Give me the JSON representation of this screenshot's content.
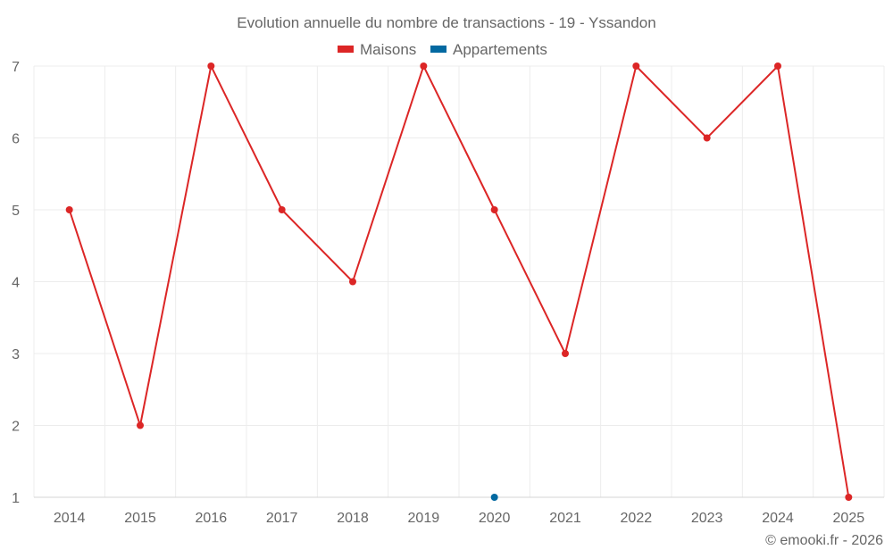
{
  "chart_data": {
    "type": "line",
    "title": "Evolution annuelle du nombre de transactions - 19 - Yssandon",
    "categories": [
      "2014",
      "2015",
      "2016",
      "2017",
      "2018",
      "2019",
      "2020",
      "2021",
      "2022",
      "2023",
      "2024",
      "2025"
    ],
    "series": [
      {
        "name": "Maisons",
        "color": "#dc2626",
        "values": [
          5,
          2,
          7,
          5,
          4,
          7,
          5,
          3,
          7,
          6,
          7,
          1
        ]
      },
      {
        "name": "Appartements",
        "color": "#0369a1",
        "values": [
          null,
          null,
          null,
          null,
          null,
          null,
          1,
          null,
          null,
          null,
          null,
          null
        ]
      }
    ],
    "yticks": [
      "1",
      "2",
      "3",
      "4",
      "5",
      "6",
      "7"
    ],
    "ylim": [
      1,
      7
    ],
    "xlabel": "",
    "ylabel": "",
    "grid": true,
    "legend": "top-center"
  },
  "footer": {
    "credit": "© emooki.fr - 2026"
  }
}
